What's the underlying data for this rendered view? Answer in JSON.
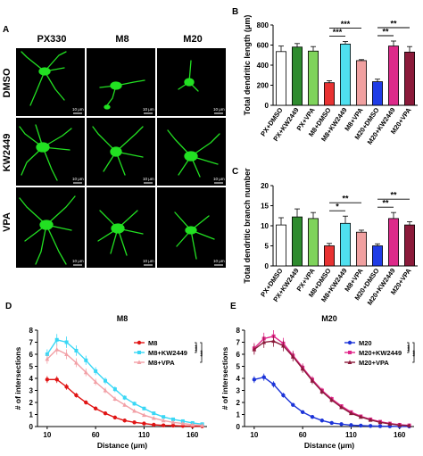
{
  "panelA": {
    "letter": "A",
    "columns": [
      "PX330",
      "M8",
      "M20"
    ],
    "rows": [
      "DMSO",
      "KW2449",
      "VPA"
    ],
    "scale_label": "10 μm"
  },
  "panelB": {
    "letter": "B",
    "chart_data": {
      "type": "bar",
      "ylabel": "Total dendritic length (μm)",
      "ylim": [
        0,
        800
      ],
      "yticks": [
        0,
        200,
        400,
        600,
        800
      ],
      "categories": [
        "PX+DMSO",
        "PX+KW2449",
        "PX+VPA",
        "M8+DMSO",
        "M8+KW2449",
        "M8+VPA",
        "M20+DMSO",
        "M20+KW2449",
        "M20+VPA"
      ],
      "values": [
        535,
        580,
        540,
        225,
        610,
        445,
        235,
        590,
        530
      ],
      "errors": [
        55,
        35,
        45,
        20,
        25,
        10,
        25,
        50,
        55
      ],
      "colors": [
        "#ffffff",
        "#2e8b2e",
        "#7fd35b",
        "#e83232",
        "#4fe0ef",
        "#f0a0a0",
        "#1f3ce6",
        "#dd2a8a",
        "#8b1a3a"
      ],
      "significance": [
        {
          "from": 3,
          "to": 4,
          "label": "***"
        },
        {
          "from": 3,
          "to": 5,
          "label": "***"
        },
        {
          "from": 6,
          "to": 7,
          "label": "**"
        },
        {
          "from": 6,
          "to": 8,
          "label": "**"
        }
      ]
    }
  },
  "panelC": {
    "letter": "C",
    "chart_data": {
      "type": "bar",
      "ylabel": "Total dendritic branch number",
      "ylim": [
        0,
        20
      ],
      "yticks": [
        0,
        5,
        10,
        15,
        20
      ],
      "categories": [
        "PX+DMSO",
        "PX+KW2449",
        "PX+VPA",
        "M8+DMSO",
        "M8+KW2449",
        "M8+VPA",
        "M20+DMSO",
        "M20+KW2449",
        "M20+VPA"
      ],
      "values": [
        10.2,
        12.2,
        11.8,
        5.0,
        10.6,
        8.4,
        5.0,
        11.8,
        10.2
      ],
      "errors": [
        1.8,
        2.0,
        1.5,
        0.6,
        1.8,
        0.5,
        0.5,
        1.5,
        0.8
      ],
      "colors": [
        "#ffffff",
        "#2e8b2e",
        "#7fd35b",
        "#e83232",
        "#4fe0ef",
        "#f0a0a0",
        "#1f3ce6",
        "#dd2a8a",
        "#8b1a3a"
      ],
      "significance": [
        {
          "from": 3,
          "to": 4,
          "label": "*"
        },
        {
          "from": 3,
          "to": 5,
          "label": "**"
        },
        {
          "from": 6,
          "to": 7,
          "label": "**"
        },
        {
          "from": 6,
          "to": 8,
          "label": "**"
        }
      ]
    }
  },
  "panelD": {
    "letter": "D",
    "chart_data": {
      "type": "line",
      "title": "M8",
      "xlabel": "Distance (μm)",
      "ylabel": "# of intersections",
      "xlim": [
        0,
        175
      ],
      "ylim": [
        0,
        8
      ],
      "xticks": [
        10,
        60,
        110,
        160
      ],
      "yticks": [
        0,
        1,
        2,
        3,
        4,
        5,
        6,
        7,
        8
      ],
      "x": [
        10,
        20,
        30,
        40,
        50,
        60,
        70,
        80,
        90,
        100,
        110,
        120,
        130,
        140,
        150,
        160,
        170
      ],
      "series": [
        {
          "name": "M8",
          "color": "#e01414",
          "marker": "circle",
          "values": [
            3.9,
            3.9,
            3.3,
            2.6,
            2.0,
            1.5,
            1.1,
            0.75,
            0.5,
            0.35,
            0.25,
            0.15,
            0.1,
            0.08,
            0.05,
            0.03,
            0.02
          ]
        },
        {
          "name": "M8+KW2449",
          "color": "#39d7f5",
          "marker": "square",
          "values": [
            6.0,
            7.2,
            7.0,
            6.3,
            5.5,
            4.6,
            3.8,
            3.1,
            2.4,
            1.9,
            1.5,
            1.1,
            0.8,
            0.6,
            0.45,
            0.3,
            0.2
          ]
        },
        {
          "name": "M8+VPA",
          "color": "#f2a0a6",
          "marker": "triangle",
          "values": [
            5.6,
            6.4,
            6.0,
            5.3,
            4.5,
            3.7,
            3.0,
            2.3,
            1.8,
            1.3,
            0.95,
            0.7,
            0.5,
            0.35,
            0.25,
            0.15,
            0.1
          ]
        }
      ],
      "significance_labels": [
        "***",
        "***"
      ]
    }
  },
  "panelE": {
    "letter": "E",
    "chart_data": {
      "type": "line",
      "title": "M20",
      "xlabel": "Distance (μm)",
      "ylabel": "# of intersections",
      "xlim": [
        0,
        175
      ],
      "ylim": [
        0,
        8
      ],
      "xticks": [
        10,
        60,
        110,
        160
      ],
      "yticks": [
        0,
        1,
        2,
        3,
        4,
        5,
        6,
        7,
        8
      ],
      "x": [
        10,
        20,
        30,
        40,
        50,
        60,
        70,
        80,
        90,
        100,
        110,
        120,
        130,
        140,
        150,
        160,
        170
      ],
      "series": [
        {
          "name": "M20",
          "color": "#1c34d8",
          "marker": "circle",
          "values": [
            3.9,
            4.1,
            3.5,
            2.6,
            1.8,
            1.2,
            0.8,
            0.5,
            0.3,
            0.2,
            0.12,
            0.08,
            0.05,
            0.03,
            0.02,
            0.01,
            0.01
          ]
        },
        {
          "name": "M20+KW2449",
          "color": "#e0268a",
          "marker": "square",
          "values": [
            6.5,
            7.3,
            7.5,
            6.9,
            5.9,
            4.9,
            3.9,
            3.0,
            2.3,
            1.7,
            1.2,
            0.85,
            0.6,
            0.4,
            0.25,
            0.15,
            0.1
          ]
        },
        {
          "name": "M20+VPA",
          "color": "#8b1a3a",
          "marker": "triangle",
          "values": [
            6.4,
            7.0,
            7.1,
            6.7,
            5.8,
            4.8,
            3.8,
            2.9,
            2.2,
            1.6,
            1.1,
            0.8,
            0.55,
            0.35,
            0.22,
            0.12,
            0.08
          ]
        }
      ],
      "significance_labels": [
        "***",
        "***"
      ]
    }
  }
}
